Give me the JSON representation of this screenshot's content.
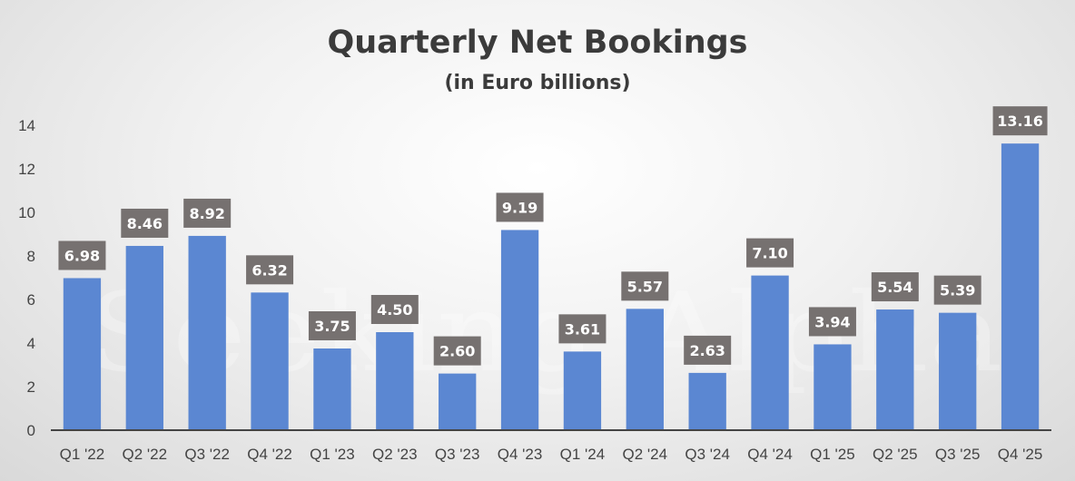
{
  "chart_data": {
    "type": "bar",
    "title": "Quarterly Net Bookings",
    "subtitle": "(in Euro billions)",
    "xlabel": "",
    "ylabel": "",
    "categories": [
      "Q1 '22",
      "Q2 '22",
      "Q3 '22",
      "Q4 '22",
      "Q1 '23",
      "Q2 '23",
      "Q3 '23",
      "Q4 '23",
      "Q1 '24",
      "Q2 '24",
      "Q3 '24",
      "Q4 '24",
      "Q1 '25",
      "Q2 '25",
      "Q3 '25",
      "Q4 '25"
    ],
    "values": [
      6.98,
      8.46,
      8.92,
      6.32,
      3.75,
      4.5,
      2.6,
      9.19,
      3.61,
      5.57,
      2.63,
      7.1,
      3.94,
      5.54,
      5.39,
      13.16
    ],
    "data_labels": [
      "6.98",
      "8.46",
      "8.92",
      "6.32",
      "3.75",
      "4.50",
      "2.60",
      "9.19",
      "3.61",
      "5.57",
      "2.63",
      "7.10",
      "3.94",
      "5.54",
      "5.39",
      "13.16"
    ],
    "y_ticks": [
      "0",
      "2",
      "4",
      "6",
      "8",
      "10",
      "12",
      "14"
    ],
    "ylim": [
      0,
      14
    ],
    "grid": false,
    "legend": "none",
    "colors": {
      "bar": "#5b87d2",
      "label_box": "#767170",
      "label_text": "#ffffff",
      "axis_line": "#444444",
      "title": "#3b3b3b"
    }
  },
  "watermark": "Seeking Alpha"
}
